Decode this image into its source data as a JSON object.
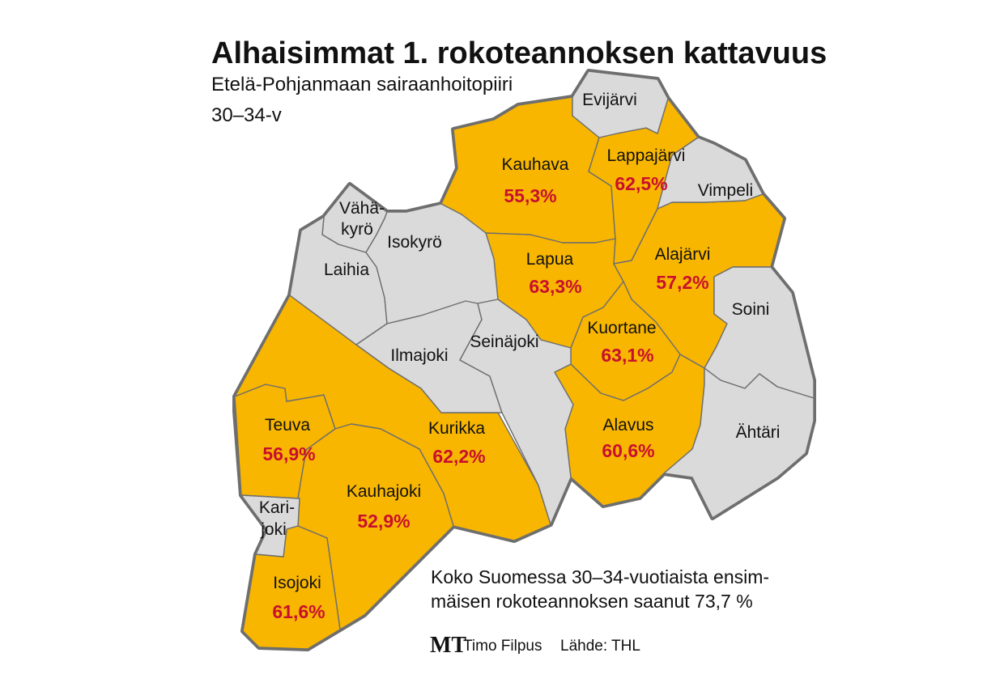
{
  "title": "Alhaisimmat 1. rokoteannoksen kattavuus",
  "subtitle_lines": [
    "Etelä-Pohjanmaan sairaanhoitopiiri",
    "30–34-v"
  ],
  "colors": {
    "low_coverage": "#f8b600",
    "other": "#dadada",
    "border": "#6e6e6e",
    "value_text": "#c8102e"
  },
  "municipalities": {
    "evijarvi": {
      "name": "Evijärvi",
      "highlighted": false
    },
    "kauhava": {
      "name": "Kauhava",
      "value": "55,3%",
      "highlighted": true
    },
    "lappajarvi": {
      "name": "Lappajärvi",
      "value": "62,5%",
      "highlighted": true
    },
    "vimpeli": {
      "name": "Vimpeli",
      "highlighted": false
    },
    "vahakyro": {
      "name_lines": [
        "Vähä-",
        "kyrö"
      ],
      "highlighted": false
    },
    "isokyro": {
      "name": "Isokyrö",
      "highlighted": false
    },
    "laihia": {
      "name": "Laihia",
      "highlighted": false
    },
    "lapua": {
      "name": "Lapua",
      "value": "63,3%",
      "highlighted": true
    },
    "alajarvi": {
      "name": "Alajärvi",
      "value": "57,2%",
      "highlighted": true
    },
    "soini": {
      "name": "Soini",
      "highlighted": false
    },
    "ilmajoki": {
      "name": "Ilmajoki",
      "highlighted": false
    },
    "seinajoki": {
      "name": "Seinäjoki",
      "highlighted": false
    },
    "kuortane": {
      "name": "Kuortane",
      "value": "63,1%",
      "highlighted": true
    },
    "teuva": {
      "name": "Teuva",
      "value": "56,9%",
      "highlighted": true
    },
    "kurikka": {
      "name": "Kurikka",
      "value": "62,2%",
      "highlighted": true
    },
    "alavus": {
      "name": "Alavus",
      "value": "60,6%",
      "highlighted": true
    },
    "ahtari": {
      "name": "Ähtäri",
      "highlighted": false
    },
    "karijoki": {
      "name_lines": [
        "Kari-",
        "joki"
      ],
      "highlighted": false
    },
    "kauhajoki": {
      "name": "Kauhajoki",
      "value": "52,9%",
      "highlighted": true
    },
    "isojoki": {
      "name": "Isojoki",
      "value": "61,6%",
      "highlighted": true
    }
  },
  "note_lines": [
    "Koko Suomessa 30–34-vuotiaista ensim-",
    "mäisen rokoteannoksen saanut 73,7 %"
  ],
  "logo": "MT",
  "author": "Timo Filpus",
  "source": "Lähde: THL"
}
